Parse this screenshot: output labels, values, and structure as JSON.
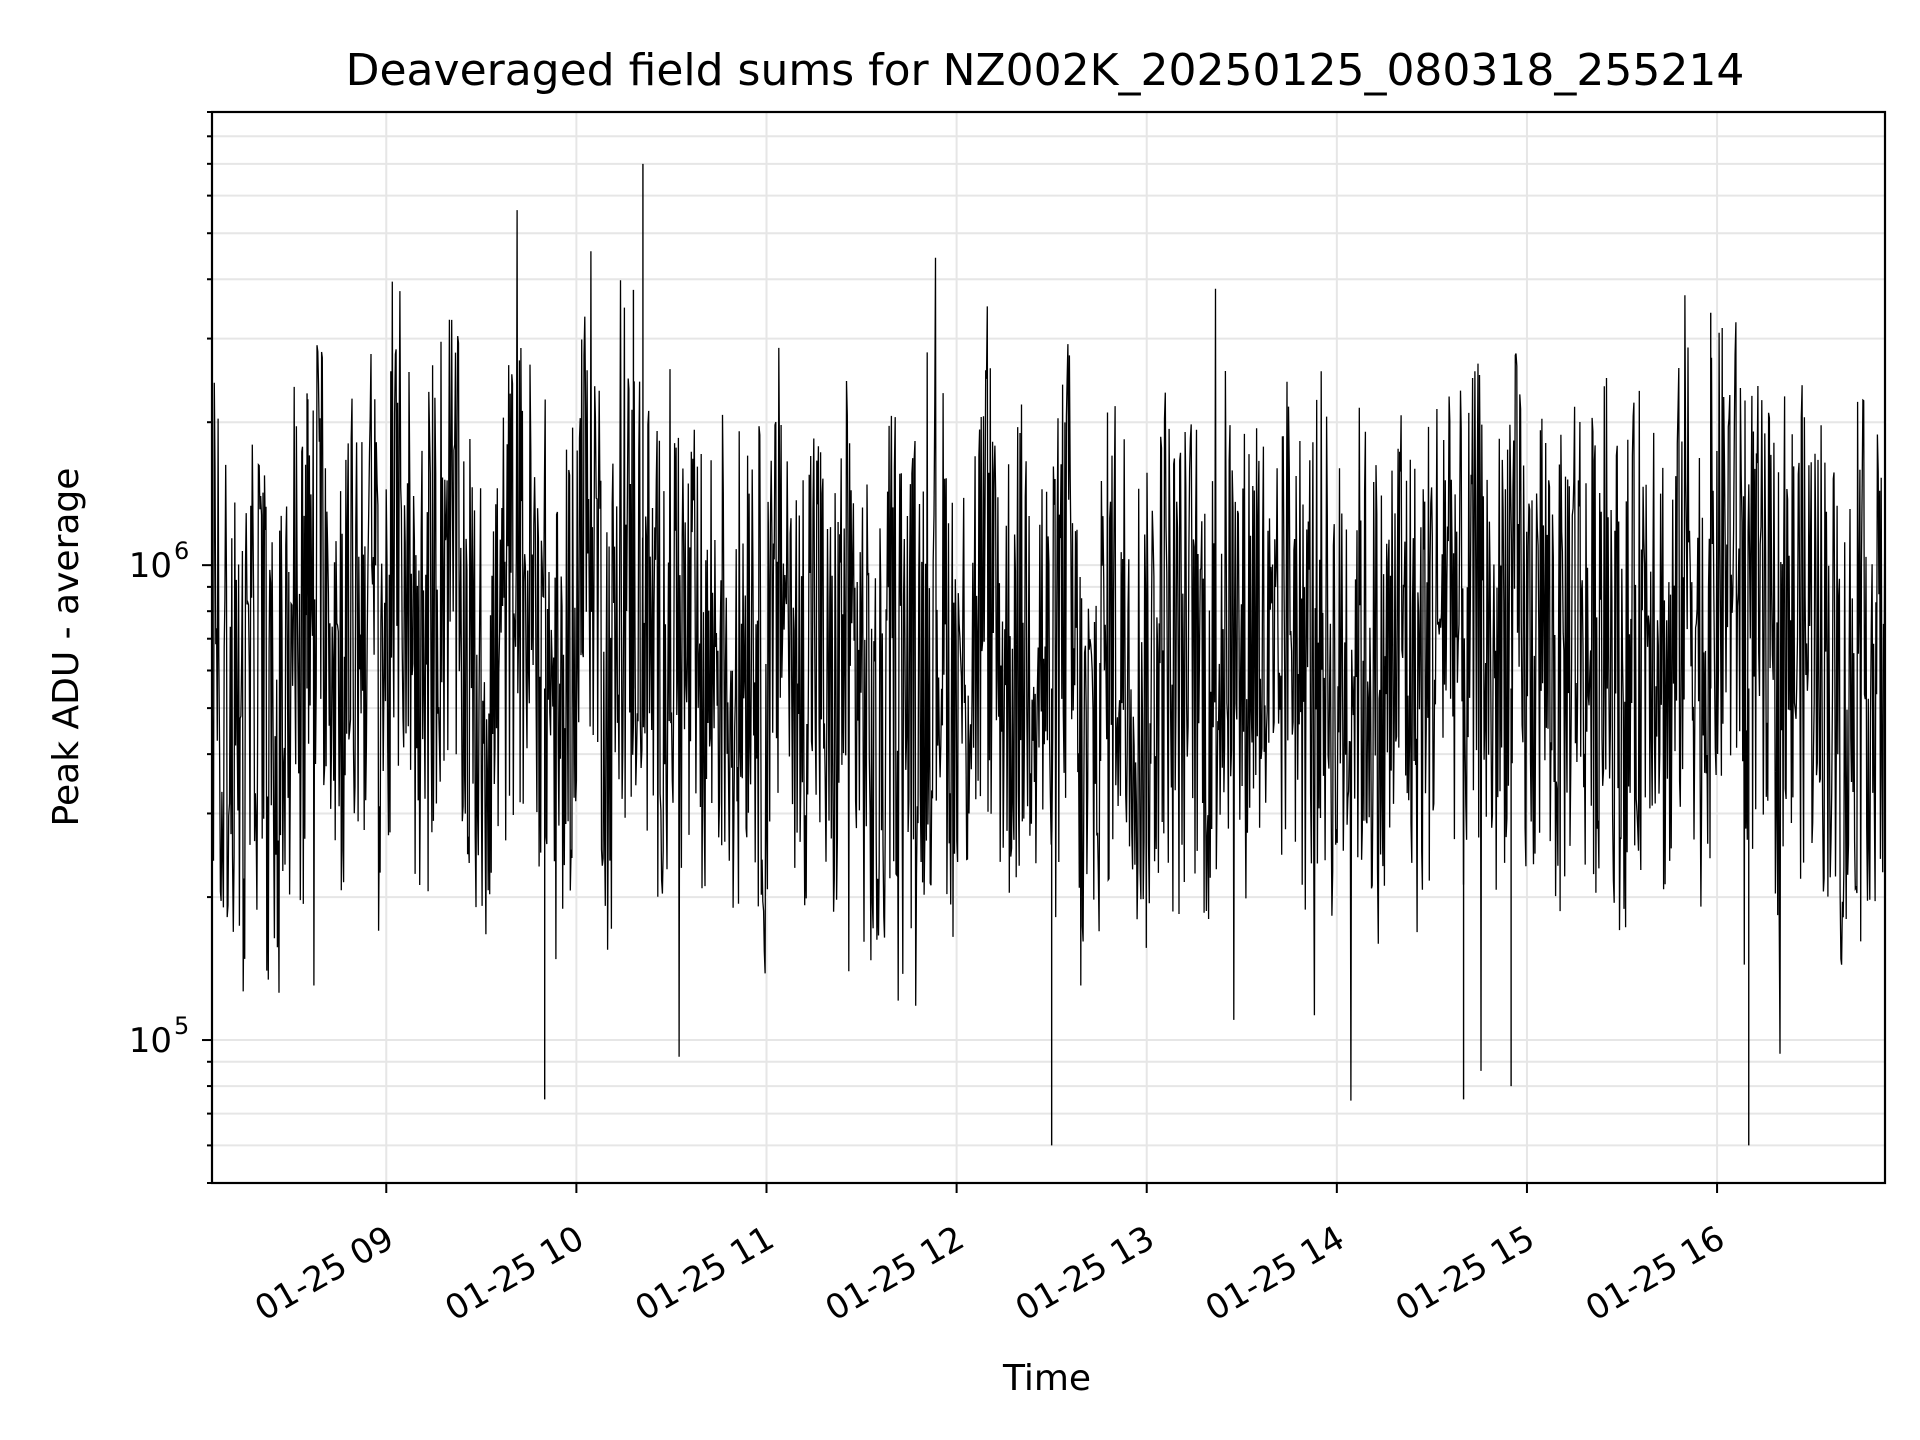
{
  "chart_data": {
    "type": "line",
    "title": "Deaveraged field sums for NZ002K_20250125_080318_255214",
    "xlabel": "Time",
    "ylabel": "Peak ADU - average",
    "yscale": "log",
    "ylim": [
      50000,
      9000000
    ],
    "xlim": [
      "2025-01-25 08:05:00",
      "2025-01-25 16:53:00"
    ],
    "x_ticks": [
      {
        "label": "01-25 09",
        "time": "2025-01-25 09:00"
      },
      {
        "label": "01-25 10",
        "time": "2025-01-25 10:00"
      },
      {
        "label": "01-25 11",
        "time": "2025-01-25 11:00"
      },
      {
        "label": "01-25 12",
        "time": "2025-01-25 12:00"
      },
      {
        "label": "01-25 13",
        "time": "2025-01-25 13:00"
      },
      {
        "label": "01-25 14",
        "time": "2025-01-25 14:00"
      },
      {
        "label": "01-25 15",
        "time": "2025-01-25 15:00"
      },
      {
        "label": "01-25 16",
        "time": "2025-01-25 16:00"
      }
    ],
    "y_ticks": [
      {
        "base": "10",
        "exp": "5",
        "value": 100000
      },
      {
        "base": "10",
        "exp": "6",
        "value": 1000000
      }
    ],
    "grid": true,
    "line_color": "#000000",
    "series": [
      {
        "x": [
          "2025-01-25 08:05",
          "2025-01-25 08:10",
          "2025-01-25 08:15",
          "2025-01-25 08:20",
          "2025-01-25 08:25",
          "2025-01-25 08:30",
          "2025-01-25 08:35",
          "2025-01-25 08:40",
          "2025-01-25 08:45",
          "2025-01-25 08:50",
          "2025-01-25 08:55",
          "2025-01-25 09:00",
          "2025-01-25 09:05",
          "2025-01-25 09:10",
          "2025-01-25 09:15",
          "2025-01-25 09:20",
          "2025-01-25 09:25",
          "2025-01-25 09:30",
          "2025-01-25 09:35",
          "2025-01-25 09:40",
          "2025-01-25 09:45",
          "2025-01-25 09:50",
          "2025-01-25 09:55",
          "2025-01-25 10:00",
          "2025-01-25 10:05",
          "2025-01-25 10:10",
          "2025-01-25 10:15",
          "2025-01-25 10:20",
          "2025-01-25 10:25",
          "2025-01-25 10:30",
          "2025-01-25 10:35",
          "2025-01-25 10:40",
          "2025-01-25 10:45",
          "2025-01-25 10:50",
          "2025-01-25 10:55",
          "2025-01-25 11:00",
          "2025-01-25 11:05",
          "2025-01-25 11:10",
          "2025-01-25 11:15",
          "2025-01-25 11:20",
          "2025-01-25 11:25",
          "2025-01-25 11:30",
          "2025-01-25 11:35",
          "2025-01-25 11:40",
          "2025-01-25 11:45",
          "2025-01-25 11:50",
          "2025-01-25 11:55",
          "2025-01-25 12:00",
          "2025-01-25 12:05",
          "2025-01-25 12:10",
          "2025-01-25 12:15",
          "2025-01-25 12:20",
          "2025-01-25 12:25",
          "2025-01-25 12:30",
          "2025-01-25 12:35",
          "2025-01-25 12:40",
          "2025-01-25 12:45",
          "2025-01-25 12:50",
          "2025-01-25 12:55",
          "2025-01-25 13:00",
          "2025-01-25 13:05",
          "2025-01-25 13:10",
          "2025-01-25 13:15",
          "2025-01-25 13:20",
          "2025-01-25 13:25",
          "2025-01-25 13:30",
          "2025-01-25 13:35",
          "2025-01-25 13:40",
          "2025-01-25 13:45",
          "2025-01-25 13:50",
          "2025-01-25 13:55",
          "2025-01-25 14:00",
          "2025-01-25 14:05",
          "2025-01-25 14:10",
          "2025-01-25 14:15",
          "2025-01-25 14:20",
          "2025-01-25 14:25",
          "2025-01-25 14:30",
          "2025-01-25 14:35",
          "2025-01-25 14:40",
          "2025-01-25 14:45",
          "2025-01-25 14:50",
          "2025-01-25 14:55",
          "2025-01-25 15:00",
          "2025-01-25 15:05",
          "2025-01-25 15:10",
          "2025-01-25 15:15",
          "2025-01-25 15:20",
          "2025-01-25 15:25",
          "2025-01-25 15:30",
          "2025-01-25 15:35",
          "2025-01-25 15:40",
          "2025-01-25 15:45",
          "2025-01-25 15:50",
          "2025-01-25 15:55",
          "2025-01-25 16:00",
          "2025-01-25 16:05",
          "2025-01-25 16:10",
          "2025-01-25 16:15",
          "2025-01-25 16:20",
          "2025-01-25 16:25",
          "2025-01-25 16:30",
          "2025-01-25 16:35",
          "2025-01-25 16:40",
          "2025-01-25 16:45",
          "2025-01-25 16:50"
        ],
        "y": [
          1100000,
          450000,
          300000,
          800000,
          160000,
          1200000,
          1000000,
          2300000,
          700000,
          950000,
          1600000,
          700000,
          2900000,
          600000,
          1400000,
          2800000,
          800000,
          400000,
          650000,
          1700000,
          1400000,
          900000,
          250000,
          1500000,
          3800000,
          420000,
          1300000,
          1700000,
          600000,
          1200000,
          700000,
          500000,
          1000000,
          450000,
          1600000,
          300000,
          2200000,
          450000,
          1300000,
          300000,
          1100000,
          550000,
          180000,
          1000000,
          550000,
          700000,
          1200000,
          400000,
          900000,
          1600000,
          600000,
          800000,
          1200000,
          380000,
          1900000,
          160000,
          500000,
          1100000,
          700000,
          400000,
          1300000,
          600000,
          900000,
          450000,
          1200000,
          600000,
          1400000,
          300000,
          1500000,
          600000,
          1100000,
          450000,
          900000,
          700000,
          400000,
          1200000,
          500000,
          900000,
          2100000,
          700000,
          1300000,
          500000,
          1900000,
          600000,
          1200000,
          500000,
          1400000,
          700000,
          1100000,
          500000,
          900000,
          1800000,
          400000,
          2500000,
          700000,
          1600000,
          2100000,
          1200000,
          800000,
          600000,
          900000,
          1000000,
          700000,
          300000,
          900000,
          600000
        ]
      }
    ],
    "envelope_points": [
      {
        "x": "2025-01-25 08:35",
        "y": 2300000
      },
      {
        "x": "2025-01-25 10:21",
        "y": 7000000
      },
      {
        "x": "2025-01-25 10:18",
        "y": 3800000
      },
      {
        "x": "2025-01-25 15:58",
        "y": 3400000
      },
      {
        "x": "2025-01-25 09:50",
        "y": 75000
      },
      {
        "x": "2025-01-25 12:30",
        "y": 60000
      },
      {
        "x": "2025-01-25 14:40",
        "y": 75000
      },
      {
        "x": "2025-01-25 14:55",
        "y": 80000
      },
      {
        "x": "2025-01-25 16:10",
        "y": 60000
      }
    ]
  }
}
